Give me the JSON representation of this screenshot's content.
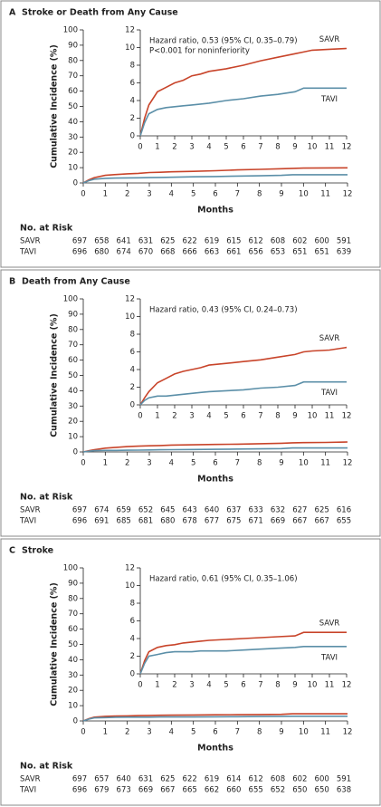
{
  "chart_data": [
    {
      "type": "line",
      "panel": "A",
      "title": "Stroke or Death from Any Cause",
      "ylabel": "Cumulative Incidence (%)",
      "xlabel": "Months",
      "x": [
        0,
        0.25,
        0.5,
        1,
        1.5,
        2,
        2.5,
        3,
        3.5,
        4,
        5,
        6,
        7,
        8,
        9,
        9.5,
        10,
        11,
        12
      ],
      "xlim": [
        0,
        12
      ],
      "xticks": [
        0,
        1,
        2,
        3,
        4,
        5,
        6,
        7,
        8,
        9,
        10,
        11,
        12
      ],
      "ylim": [
        0,
        100
      ],
      "yticks": [
        0,
        10,
        20,
        30,
        40,
        50,
        60,
        70,
        80,
        90,
        100
      ],
      "inset": {
        "xlim": [
          0,
          12
        ],
        "xticks": [
          0,
          1,
          2,
          3,
          4,
          5,
          6,
          7,
          8,
          9,
          10,
          11,
          12
        ],
        "ylim": [
          0,
          12
        ],
        "yticks": [
          0,
          2,
          4,
          6,
          8,
          10,
          12
        ],
        "annotations": [
          "Hazard ratio, 0.53 (95% CI, 0.35–0.79)",
          "P<0.001 for noninferiority"
        ]
      },
      "risk_title": "No. at Risk",
      "series": [
        {
          "name": "SAVR",
          "color": "#c8442a",
          "values": [
            0,
            2.0,
            3.5,
            5.0,
            5.5,
            6.0,
            6.3,
            6.8,
            7.0,
            7.3,
            7.6,
            8.0,
            8.5,
            8.9,
            9.3,
            9.5,
            9.7,
            9.8,
            9.9
          ],
          "at_risk": [
            697,
            658,
            641,
            631,
            625,
            622,
            619,
            615,
            612,
            608,
            602,
            600,
            591
          ]
        },
        {
          "name": "TAVI",
          "color": "#5b8fa8",
          "values": [
            0,
            1.5,
            2.5,
            3.0,
            3.2,
            3.3,
            3.4,
            3.5,
            3.6,
            3.7,
            4.0,
            4.2,
            4.5,
            4.7,
            5.0,
            5.4,
            5.4,
            5.4,
            5.4
          ],
          "at_risk": [
            696,
            680,
            674,
            670,
            668,
            666,
            663,
            661,
            656,
            653,
            651,
            651,
            639
          ]
        }
      ]
    },
    {
      "type": "line",
      "panel": "B",
      "title": "Death from Any Cause",
      "ylabel": "Cumulative Incidence (%)",
      "xlabel": "Months",
      "x": [
        0,
        0.25,
        0.5,
        1,
        1.5,
        2,
        2.5,
        3,
        3.5,
        4,
        5,
        6,
        7,
        8,
        9,
        9.5,
        10,
        11,
        12
      ],
      "xlim": [
        0,
        12
      ],
      "xticks": [
        0,
        1,
        2,
        3,
        4,
        5,
        6,
        7,
        8,
        9,
        10,
        11,
        12
      ],
      "ylim": [
        0,
        100
      ],
      "yticks": [
        0,
        10,
        20,
        30,
        40,
        50,
        60,
        70,
        80,
        90,
        100
      ],
      "inset": {
        "xlim": [
          0,
          12
        ],
        "xticks": [
          0,
          1,
          2,
          3,
          4,
          5,
          6,
          7,
          8,
          9,
          10,
          11,
          12
        ],
        "ylim": [
          0,
          12
        ],
        "yticks": [
          0,
          2,
          4,
          6,
          8,
          10,
          12
        ],
        "annotations": [
          "Hazard ratio, 0.43 (95% CI, 0.24–0.73)"
        ]
      },
      "risk_title": "No. at Risk",
      "series": [
        {
          "name": "SAVR",
          "color": "#c8442a",
          "values": [
            0,
            0.8,
            1.5,
            2.5,
            3.0,
            3.5,
            3.8,
            4.0,
            4.2,
            4.5,
            4.7,
            4.9,
            5.1,
            5.4,
            5.7,
            6.0,
            6.1,
            6.2,
            6.5
          ],
          "at_risk": [
            697,
            674,
            659,
            652,
            645,
            643,
            640,
            637,
            633,
            632,
            627,
            625,
            616
          ]
        },
        {
          "name": "TAVI",
          "color": "#5b8fa8",
          "values": [
            0,
            0.5,
            0.8,
            1.0,
            1.0,
            1.1,
            1.2,
            1.3,
            1.4,
            1.5,
            1.6,
            1.7,
            1.9,
            2.0,
            2.2,
            2.6,
            2.6,
            2.6,
            2.6
          ],
          "at_risk": [
            696,
            691,
            685,
            681,
            680,
            678,
            677,
            675,
            671,
            669,
            667,
            667,
            655
          ]
        }
      ]
    },
    {
      "type": "line",
      "panel": "C",
      "title": "Stroke",
      "ylabel": "Cumulative Incidence (%)",
      "xlabel": "Months",
      "x": [
        0,
        0.25,
        0.5,
        1,
        1.5,
        2,
        2.5,
        3,
        3.5,
        4,
        5,
        6,
        7,
        8,
        9,
        9.5,
        10,
        11,
        12
      ],
      "xlim": [
        0,
        12
      ],
      "xticks": [
        0,
        1,
        2,
        3,
        4,
        5,
        6,
        7,
        8,
        9,
        10,
        11,
        12
      ],
      "ylim": [
        0,
        100
      ],
      "yticks": [
        0,
        10,
        20,
        30,
        40,
        50,
        60,
        70,
        80,
        90,
        100
      ],
      "inset": {
        "xlim": [
          0,
          12
        ],
        "xticks": [
          0,
          1,
          2,
          3,
          4,
          5,
          6,
          7,
          8,
          9,
          10,
          11,
          12
        ],
        "ylim": [
          0,
          12
        ],
        "yticks": [
          0,
          2,
          4,
          6,
          8,
          10,
          12
        ],
        "annotations": [
          "Hazard ratio, 0.61 (95% CI, 0.35–1.06)"
        ]
      },
      "risk_title": "No. at Risk",
      "series": [
        {
          "name": "SAVR",
          "color": "#c8442a",
          "values": [
            0,
            1.5,
            2.5,
            3.0,
            3.2,
            3.3,
            3.5,
            3.6,
            3.7,
            3.8,
            3.9,
            4.0,
            4.1,
            4.2,
            4.3,
            4.7,
            4.7,
            4.7,
            4.7
          ],
          "at_risk": [
            697,
            657,
            640,
            631,
            625,
            622,
            619,
            614,
            612,
            608,
            602,
            600,
            591
          ]
        },
        {
          "name": "TAVI",
          "color": "#5b8fa8",
          "values": [
            0,
            1.2,
            2.0,
            2.2,
            2.4,
            2.5,
            2.5,
            2.5,
            2.6,
            2.6,
            2.6,
            2.7,
            2.8,
            2.9,
            3.0,
            3.1,
            3.1,
            3.1,
            3.1
          ],
          "at_risk": [
            696,
            679,
            673,
            669,
            667,
            665,
            662,
            660,
            655,
            652,
            650,
            650,
            638
          ]
        }
      ]
    }
  ]
}
